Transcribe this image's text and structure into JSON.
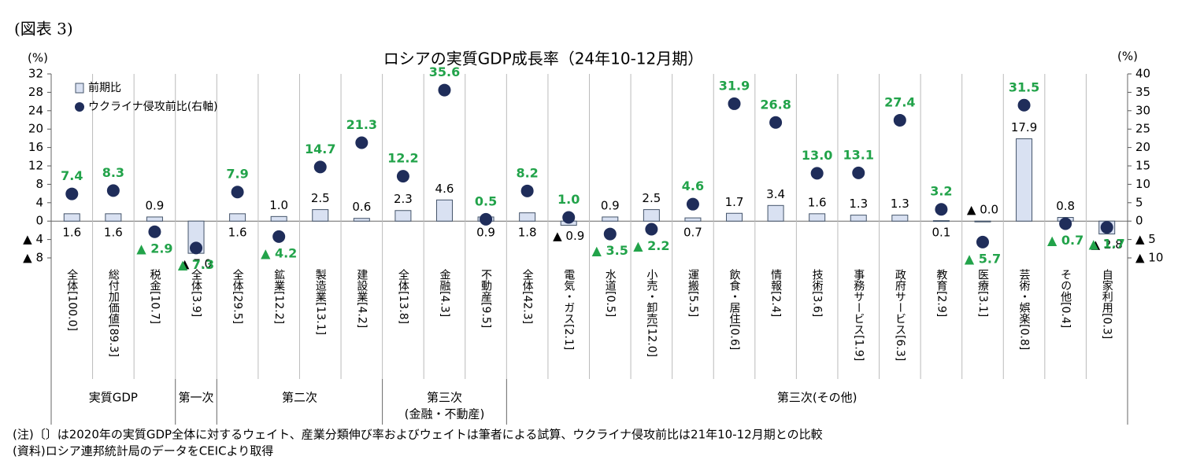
{
  "figure_label": "(図表 3)",
  "chart_data": {
    "type": "bar",
    "title": "ロシアの実質GDP成長率（24年10-12月期）",
    "ylabel": "(%)",
    "y2label": "(%)",
    "categories": [
      "全体[100.0]",
      "総付加価値[89.3]",
      "税金[10.7]",
      "全体[3.9]",
      "全体[29.5]",
      "鉱業[12.2]",
      "製造業[13.1]",
      "建設業[4.2]",
      "全体[13.8]",
      "金融[4.3]",
      "不動産[9.5]",
      "全体[42.3]",
      "電気・ガス[2.1]",
      "水道[0.5]",
      "小売・卸売[12.0]",
      "運搬[5.5]",
      "飲食・居住[0.6]",
      "情報[2.4]",
      "技術[3.6]",
      "事務サービス[1.9]",
      "政府サービス[6.3]",
      "教育[2.9]",
      "医療[3.1]",
      "芸術・娯楽[0.8]",
      "その他[0.4]",
      "自家利用[0.3]"
    ],
    "groups": [
      {
        "name": "実質GDP",
        "size": 3
      },
      {
        "name": "第一次",
        "size": 1
      },
      {
        "name": "第二次",
        "size": 4
      },
      {
        "name": "第三次",
        "sublabel": "(金融・不動産)",
        "size": 3
      },
      {
        "name": "第三次(その他)",
        "size": 15
      }
    ],
    "series": [
      {
        "name": "前期比",
        "type": "bar",
        "color": "#d9e1f2",
        "edge": "#44546a",
        "label_color": "#000000",
        "values": [
          1.6,
          1.6,
          0.9,
          -7.0,
          1.6,
          1.0,
          2.5,
          0.6,
          2.3,
          4.6,
          0.9,
          1.8,
          -0.9,
          0.9,
          2.5,
          0.7,
          1.7,
          3.4,
          1.6,
          1.3,
          1.3,
          0.1,
          0.0,
          17.9,
          0.8,
          -2.8
        ],
        "value_labels": [
          "1.6",
          "1.6",
          "0.9",
          "▲ 7.0",
          "1.6",
          "1.0",
          "2.5",
          "0.6",
          "2.3",
          "4.6",
          "0.9",
          "1.8",
          "▲ 0.9",
          "0.9",
          "2.5",
          "0.7",
          "1.7",
          "3.4",
          "1.6",
          "1.3",
          "1.3",
          "0.1",
          "▲ 0.0",
          "17.9",
          "0.8",
          "▲ 2.8"
        ]
      },
      {
        "name": "ウクライナ侵攻前比(右軸)",
        "type": "scatter",
        "axis": "y2",
        "color": "#1f2d5a",
        "label_color": "#22a34a",
        "values": [
          7.4,
          8.3,
          -2.9,
          -7.3,
          7.9,
          -4.2,
          14.7,
          21.3,
          12.2,
          35.6,
          0.5,
          8.2,
          1.0,
          -3.5,
          -2.2,
          4.6,
          31.9,
          26.8,
          13.0,
          13.1,
          27.4,
          3.2,
          -5.7,
          31.5,
          -0.7,
          -1.7
        ],
        "value_labels": [
          "7.4",
          "8.3",
          "▲ 2.9",
          "▲ 7.3",
          "7.9",
          "▲ 4.2",
          "14.7",
          "21.3",
          "12.2",
          "35.6",
          "0.5",
          "8.2",
          "1.0",
          "▲ 3.5",
          "▲ 2.2",
          "4.6",
          "31.9",
          "26.8",
          "13.0",
          "13.1",
          "27.4",
          "3.2",
          "▲ 5.7",
          "31.5",
          "▲ 0.7",
          "▲ 1.7"
        ]
      }
    ],
    "ylim": [
      -8,
      32
    ],
    "yticks": [
      {
        "value": -8,
        "label": "▲ 8"
      },
      {
        "value": -4,
        "label": "▲ 4"
      },
      0,
      4,
      8,
      12,
      16,
      20,
      24,
      28,
      32
    ],
    "y2lim": [
      -10,
      40
    ],
    "y2ticks": [
      {
        "value": -10,
        "label": "▲ 10"
      },
      {
        "value": -5,
        "label": "▲ 5"
      },
      0,
      5,
      10,
      15,
      20,
      25,
      30,
      35,
      40
    ],
    "grid": false,
    "legend": "upper left"
  },
  "notes": [
    "(注)〔〕は2020年の実質GDP全体に対するウェイト、産業分類伸び率およびウェイトは筆者による試算、ウクライナ侵攻前比は21年10-12月期との比較",
    "(資料)ロシア連邦統計局のデータをCEICより取得"
  ]
}
